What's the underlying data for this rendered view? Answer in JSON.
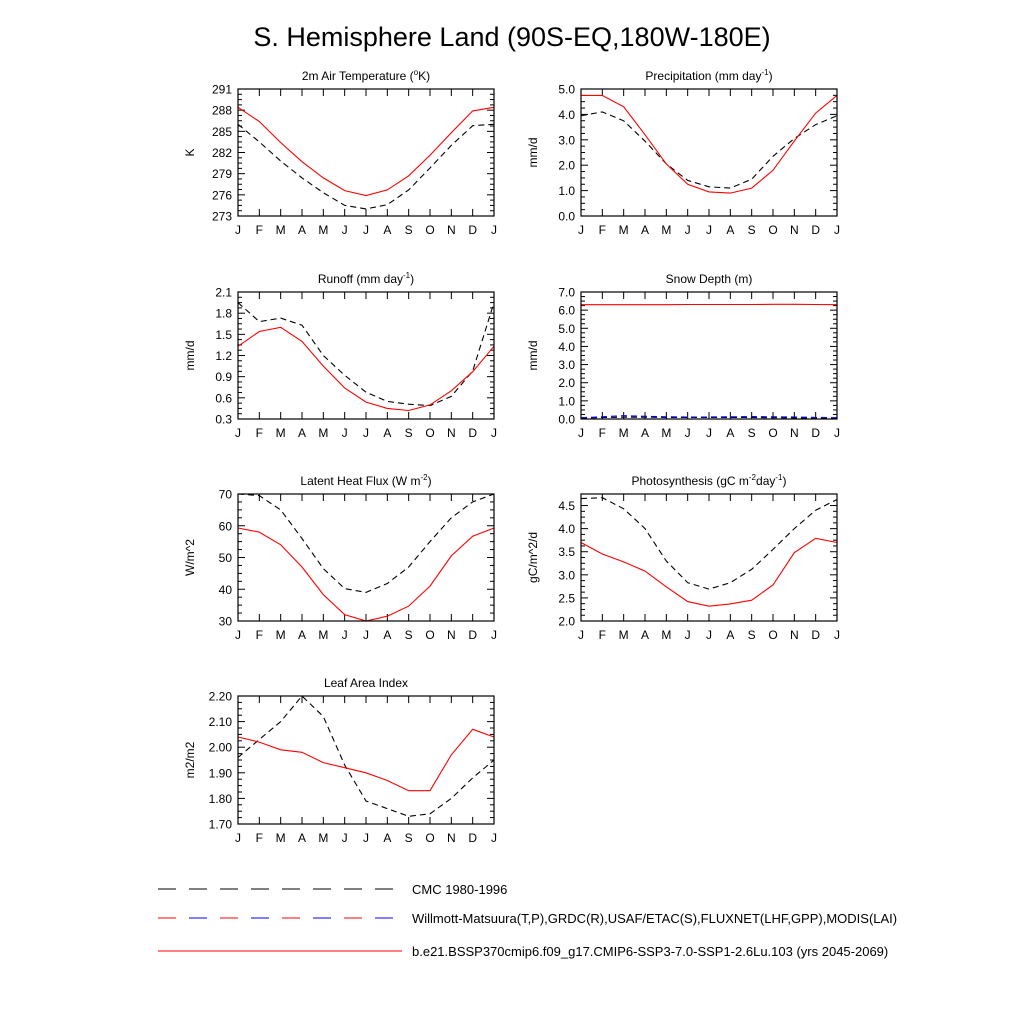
{
  "page_title": "S. Hemisphere Land (90S-EQ,180W-180E)",
  "legend": {
    "placement": "bottom-left",
    "entries": [
      {
        "label": "CMC 1980-1996",
        "color": "#000000",
        "style": "dashed"
      },
      {
        "label": "Willmott-Matsuura(T,P),GRDC(R),USAF/ETAC(S),FLUXNET(LHF,GPP),MODIS(LAI)",
        "color": "#ff0000",
        "color2": "#0000ff",
        "style": "dashed-multicolor"
      },
      {
        "label": "b.e21.BSSP370cmip6.f09_g17.CMIP6-SSP3-7.0-SSP1-2.6Lu.103 (yrs 2045-2069)",
        "color": "#ff0000",
        "style": "solid"
      }
    ]
  },
  "colors": {
    "model": "#ff0000",
    "obs": "#000000",
    "obs2": "#0000ff",
    "axis": "#000000"
  },
  "chart_data": [
    {
      "id": "t2m",
      "type": "line",
      "title_parts": [
        "2m Air Temperature (",
        "o",
        "K)"
      ],
      "title_sup_index": 1,
      "ylabel": "K",
      "categories": [
        "J",
        "F",
        "M",
        "A",
        "M",
        "J",
        "J",
        "A",
        "S",
        "O",
        "N",
        "D",
        "J"
      ],
      "ylim": [
        273,
        291
      ],
      "yticks": [
        273,
        276,
        279,
        282,
        285,
        288,
        291
      ],
      "ytick_labels": [
        "273",
        "276",
        "279",
        "282",
        "285",
        "288",
        "291"
      ],
      "series": [
        {
          "role": "obs",
          "values": [
            286.0,
            283.5,
            280.8,
            278.4,
            276.3,
            274.5,
            274.0,
            274.6,
            276.7,
            279.8,
            283.0,
            285.8,
            286.0
          ]
        },
        {
          "role": "model",
          "values": [
            288.4,
            286.4,
            283.4,
            280.7,
            278.4,
            276.6,
            275.9,
            276.7,
            278.7,
            281.6,
            284.8,
            287.9,
            288.4
          ]
        }
      ]
    },
    {
      "id": "precip",
      "type": "line",
      "title_parts": [
        "Precipitation (mm day",
        "-1",
        ")"
      ],
      "title_sup_index": 1,
      "ylabel": "mm/d",
      "categories": [
        "J",
        "F",
        "M",
        "A",
        "M",
        "J",
        "J",
        "A",
        "S",
        "O",
        "N",
        "D",
        "J"
      ],
      "ylim": [
        0.0,
        5.0
      ],
      "yticks": [
        0.0,
        1.0,
        2.0,
        3.0,
        4.0,
        5.0
      ],
      "ytick_labels": [
        "0.0",
        "1.0",
        "2.0",
        "3.0",
        "4.0",
        "5.0"
      ],
      "series": [
        {
          "role": "obs",
          "values": [
            3.95,
            4.1,
            3.75,
            2.95,
            2.05,
            1.4,
            1.15,
            1.1,
            1.45,
            2.35,
            3.05,
            3.6,
            3.95
          ]
        },
        {
          "role": "model",
          "values": [
            4.75,
            4.75,
            4.3,
            3.2,
            2.05,
            1.25,
            0.95,
            0.9,
            1.1,
            1.8,
            2.95,
            4.05,
            4.75
          ]
        }
      ]
    },
    {
      "id": "runoff",
      "type": "line",
      "title_parts": [
        "Runoff (mm day",
        "-1",
        ")"
      ],
      "title_sup_index": 1,
      "ylabel": "mm/d",
      "categories": [
        "J",
        "F",
        "M",
        "A",
        "M",
        "J",
        "J",
        "A",
        "S",
        "O",
        "N",
        "D",
        "J"
      ],
      "ylim": [
        0.3,
        2.1
      ],
      "yticks": [
        0.3,
        0.6,
        0.9,
        1.2,
        1.5,
        1.8,
        2.1
      ],
      "ytick_labels": [
        "0.3",
        "0.6",
        "0.9",
        "1.2",
        "1.5",
        "1.8",
        "2.1"
      ],
      "series": [
        {
          "role": "obs",
          "values": [
            1.95,
            1.68,
            1.73,
            1.63,
            1.2,
            0.92,
            0.68,
            0.55,
            0.51,
            0.49,
            0.62,
            0.98,
            1.95
          ]
        },
        {
          "role": "model",
          "values": [
            1.33,
            1.54,
            1.6,
            1.4,
            1.05,
            0.74,
            0.54,
            0.45,
            0.42,
            0.5,
            0.7,
            0.97,
            1.33
          ]
        }
      ]
    },
    {
      "id": "snow",
      "type": "line",
      "title_parts": [
        "Snow Depth (m)"
      ],
      "title_sup_index": -1,
      "ylabel": "mm/d",
      "categories": [
        "J",
        "F",
        "M",
        "A",
        "M",
        "J",
        "J",
        "A",
        "S",
        "O",
        "N",
        "D",
        "J"
      ],
      "ylim": [
        0.0,
        7.0
      ],
      "yticks": [
        0.0,
        1.0,
        2.0,
        3.0,
        4.0,
        5.0,
        6.0,
        7.0
      ],
      "ytick_labels": [
        "0.0",
        "1.0",
        "2.0",
        "3.0",
        "4.0",
        "5.0",
        "6.0",
        "7.0"
      ],
      "series": [
        {
          "role": "obs",
          "values": [
            0.05,
            0.08,
            0.1,
            0.1,
            0.09,
            0.08,
            0.08,
            0.08,
            0.08,
            0.07,
            0.06,
            0.05,
            0.05
          ]
        },
        {
          "role": "obs2",
          "values": [
            0.07,
            0.12,
            0.18,
            0.15,
            0.12,
            0.11,
            0.11,
            0.12,
            0.13,
            0.12,
            0.11,
            0.09,
            0.07
          ]
        },
        {
          "role": "model",
          "values": [
            6.3,
            6.3,
            6.3,
            6.3,
            6.3,
            6.31,
            6.31,
            6.31,
            6.31,
            6.32,
            6.32,
            6.31,
            6.3
          ]
        }
      ]
    },
    {
      "id": "lhf",
      "type": "line",
      "title_parts": [
        "Latent Heat Flux (W m",
        "-2",
        ")"
      ],
      "title_sup_index": 1,
      "ylabel": "W/m^2",
      "categories": [
        "J",
        "F",
        "M",
        "A",
        "M",
        "J",
        "J",
        "A",
        "S",
        "O",
        "N",
        "D",
        "J"
      ],
      "ylim": [
        30,
        70
      ],
      "yticks": [
        30,
        40,
        50,
        60,
        70
      ],
      "ytick_labels": [
        "30",
        "40",
        "50",
        "60",
        "70"
      ],
      "series": [
        {
          "role": "obs",
          "values": [
            70,
            69.5,
            65,
            56,
            46.5,
            40.2,
            39,
            41.8,
            47,
            55,
            62.5,
            67.5,
            70
          ]
        },
        {
          "role": "model",
          "values": [
            59.3,
            58,
            54,
            47,
            38.3,
            32,
            30,
            31.5,
            34.7,
            41,
            50.5,
            56.7,
            59.3
          ]
        }
      ]
    },
    {
      "id": "gpp",
      "type": "line",
      "title_parts": [
        "Photosynthesis (gC m",
        "-2",
        "day",
        "-1",
        ")"
      ],
      "title_sup_index": [
        1,
        3
      ],
      "ylabel": "gC/m^2/d",
      "categories": [
        "J",
        "F",
        "M",
        "A",
        "M",
        "J",
        "J",
        "A",
        "S",
        "O",
        "N",
        "D",
        "J"
      ],
      "ylim": [
        2.0,
        4.75
      ],
      "yticks": [
        2.0,
        2.5,
        3.0,
        3.5,
        4.0,
        4.5
      ],
      "ytick_labels": [
        "2.0",
        "2.5",
        "3.0",
        "3.5",
        "4.0",
        "4.5"
      ],
      "series": [
        {
          "role": "obs",
          "values": [
            4.65,
            4.67,
            4.43,
            4.0,
            3.3,
            2.83,
            2.69,
            2.83,
            3.12,
            3.55,
            4.0,
            4.4,
            4.63
          ]
        },
        {
          "role": "model",
          "values": [
            3.7,
            3.45,
            3.28,
            3.08,
            2.74,
            2.42,
            2.32,
            2.37,
            2.45,
            2.78,
            3.48,
            3.79,
            3.7
          ]
        }
      ]
    },
    {
      "id": "lai",
      "type": "line",
      "title_parts": [
        "Leaf Area Index"
      ],
      "title_sup_index": -1,
      "ylabel": "m2/m2",
      "categories": [
        "J",
        "F",
        "M",
        "A",
        "M",
        "J",
        "J",
        "A",
        "S",
        "O",
        "N",
        "D",
        "J"
      ],
      "ylim": [
        1.7,
        2.2
      ],
      "yticks": [
        1.7,
        1.8,
        1.9,
        2.0,
        2.1,
        2.2
      ],
      "ytick_labels": [
        "1.70",
        "1.80",
        "1.90",
        "2.00",
        "2.10",
        "2.20"
      ],
      "series": [
        {
          "role": "obs",
          "values": [
            1.96,
            2.03,
            2.1,
            2.2,
            2.12,
            1.93,
            1.79,
            1.76,
            1.73,
            1.74,
            1.8,
            1.88,
            1.95
          ]
        },
        {
          "role": "model",
          "values": [
            2.04,
            2.02,
            1.99,
            1.98,
            1.94,
            1.92,
            1.9,
            1.87,
            1.83,
            1.83,
            1.97,
            2.07,
            2.04
          ]
        }
      ]
    }
  ]
}
